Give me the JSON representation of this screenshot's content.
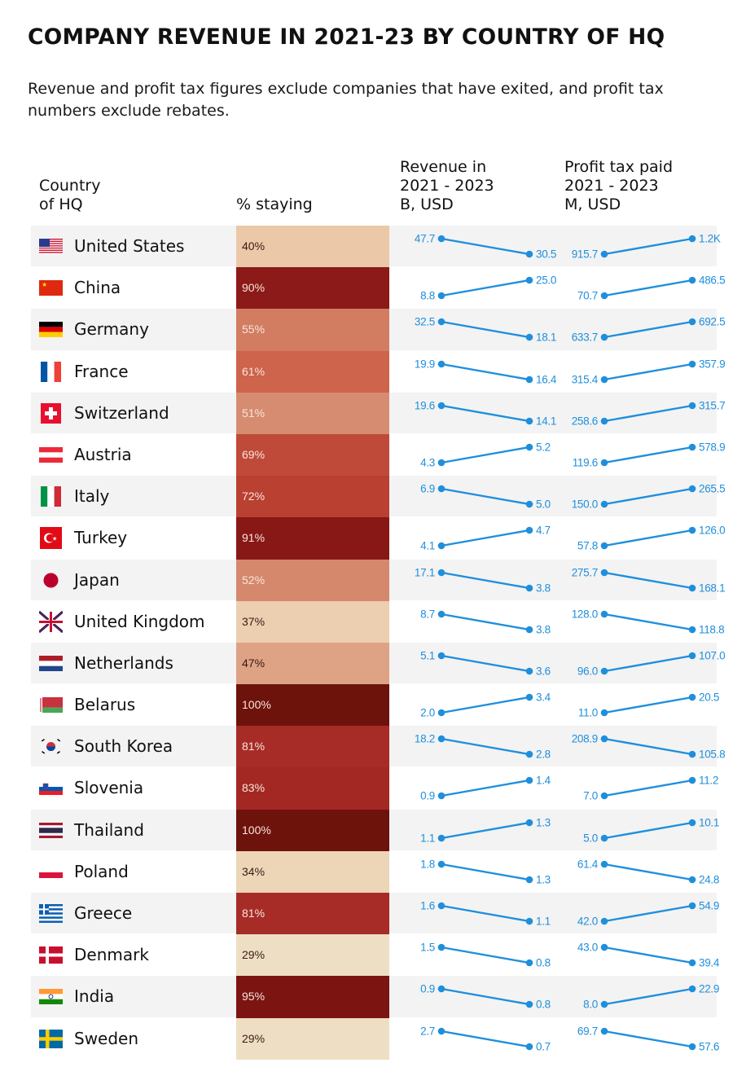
{
  "title": "COMPANY REVENUE IN 2021-23 BY COUNTRY OF HQ",
  "subtitle": "Revenue and profit tax figures exclude companies that have exited, and profit tax numbers exclude rebates.",
  "headers": {
    "country": "Country\nof HQ",
    "staying": "% staying",
    "revenue": "Revenue in\n2021 - 2023\nB, USD",
    "tax": "Profit tax paid\n2021 - 2023\nM, USD"
  },
  "colors": {
    "accent": "#1f8fdc",
    "heat_low": "#efe0c6",
    "heat_high": "#6e120c"
  },
  "chart_data": {
    "type": "table",
    "title": "COMPANY REVENUE IN 2021-23 BY COUNTRY OF HQ",
    "columns": [
      "Country of HQ",
      "% staying",
      "Revenue 2021 (B, USD)",
      "Revenue 2023 (B, USD)",
      "Profit tax 2021 (M, USD)",
      "Profit tax 2023 (M, USD)"
    ],
    "rows": [
      {
        "country": "United States",
        "flag": "us-flag-icon",
        "staying": 40,
        "staying_label": "40%",
        "rev2021": 47.7,
        "rev2021_label": "47.7",
        "rev2023": 30.5,
        "rev2023_label": "30.5",
        "tax2021": 915.7,
        "tax2021_label": "915.7",
        "tax2023": 1200,
        "tax2023_label": "1.2K"
      },
      {
        "country": "China",
        "flag": "cn-flag-icon",
        "staying": 90,
        "staying_label": "90%",
        "rev2021": 8.8,
        "rev2021_label": "8.8",
        "rev2023": 25.0,
        "rev2023_label": "25.0",
        "tax2021": 70.7,
        "tax2021_label": "70.7",
        "tax2023": 486.5,
        "tax2023_label": "486.5"
      },
      {
        "country": "Germany",
        "flag": "de-flag-icon",
        "staying": 55,
        "staying_label": "55%",
        "rev2021": 32.5,
        "rev2021_label": "32.5",
        "rev2023": 18.1,
        "rev2023_label": "18.1",
        "tax2021": 633.7,
        "tax2021_label": "633.7",
        "tax2023": 692.5,
        "tax2023_label": "692.5"
      },
      {
        "country": "France",
        "flag": "fr-flag-icon",
        "staying": 61,
        "staying_label": "61%",
        "rev2021": 19.9,
        "rev2021_label": "19.9",
        "rev2023": 16.4,
        "rev2023_label": "16.4",
        "tax2021": 315.4,
        "tax2021_label": "315.4",
        "tax2023": 357.9,
        "tax2023_label": "357.9"
      },
      {
        "country": "Switzerland",
        "flag": "ch-flag-icon",
        "staying": 51,
        "staying_label": "51%",
        "rev2021": 19.6,
        "rev2021_label": "19.6",
        "rev2023": 14.1,
        "rev2023_label": "14.1",
        "tax2021": 258.6,
        "tax2021_label": "258.6",
        "tax2023": 315.7,
        "tax2023_label": "315.7"
      },
      {
        "country": "Austria",
        "flag": "at-flag-icon",
        "staying": 69,
        "staying_label": "69%",
        "rev2021": 4.3,
        "rev2021_label": "4.3",
        "rev2023": 5.2,
        "rev2023_label": "5.2",
        "tax2021": 119.6,
        "tax2021_label": "119.6",
        "tax2023": 578.9,
        "tax2023_label": "578.9"
      },
      {
        "country": "Italy",
        "flag": "it-flag-icon",
        "staying": 72,
        "staying_label": "72%",
        "rev2021": 6.9,
        "rev2021_label": "6.9",
        "rev2023": 5.0,
        "rev2023_label": "5.0",
        "tax2021": 150.0,
        "tax2021_label": "150.0",
        "tax2023": 265.5,
        "tax2023_label": "265.5"
      },
      {
        "country": "Turkey",
        "flag": "tr-flag-icon",
        "staying": 91,
        "staying_label": "91%",
        "rev2021": 4.1,
        "rev2021_label": "4.1",
        "rev2023": 4.7,
        "rev2023_label": "4.7",
        "tax2021": 57.8,
        "tax2021_label": "57.8",
        "tax2023": 126.0,
        "tax2023_label": "126.0"
      },
      {
        "country": "Japan",
        "flag": "jp-flag-icon",
        "staying": 52,
        "staying_label": "52%",
        "rev2021": 17.1,
        "rev2021_label": "17.1",
        "rev2023": 3.8,
        "rev2023_label": "3.8",
        "tax2021": 275.7,
        "tax2021_label": "275.7",
        "tax2023": 168.1,
        "tax2023_label": "168.1"
      },
      {
        "country": "United Kingdom",
        "flag": "gb-flag-icon",
        "staying": 37,
        "staying_label": "37%",
        "rev2021": 8.7,
        "rev2021_label": "8.7",
        "rev2023": 3.8,
        "rev2023_label": "3.8",
        "tax2021": 128.0,
        "tax2021_label": "128.0",
        "tax2023": 118.8,
        "tax2023_label": "118.8"
      },
      {
        "country": "Netherlands",
        "flag": "nl-flag-icon",
        "staying": 47,
        "staying_label": "47%",
        "rev2021": 5.1,
        "rev2021_label": "5.1",
        "rev2023": 3.6,
        "rev2023_label": "3.6",
        "tax2021": 96.0,
        "tax2021_label": "96.0",
        "tax2023": 107.0,
        "tax2023_label": "107.0"
      },
      {
        "country": "Belarus",
        "flag": "by-flag-icon",
        "staying": 100,
        "staying_label": "100%",
        "rev2021": 2.0,
        "rev2021_label": "2.0",
        "rev2023": 3.4,
        "rev2023_label": "3.4",
        "tax2021": 11.0,
        "tax2021_label": "11.0",
        "tax2023": 20.5,
        "tax2023_label": "20.5"
      },
      {
        "country": "South Korea",
        "flag": "kr-flag-icon",
        "staying": 81,
        "staying_label": "81%",
        "rev2021": 18.2,
        "rev2021_label": "18.2",
        "rev2023": 2.8,
        "rev2023_label": "2.8",
        "tax2021": 208.9,
        "tax2021_label": "208.9",
        "tax2023": 105.8,
        "tax2023_label": "105.8"
      },
      {
        "country": "Slovenia",
        "flag": "si-flag-icon",
        "staying": 83,
        "staying_label": "83%",
        "rev2021": 0.9,
        "rev2021_label": "0.9",
        "rev2023": 1.4,
        "rev2023_label": "1.4",
        "tax2021": 7.0,
        "tax2021_label": "7.0",
        "tax2023": 11.2,
        "tax2023_label": "11.2"
      },
      {
        "country": "Thailand",
        "flag": "th-flag-icon",
        "staying": 100,
        "staying_label": "100%",
        "rev2021": 1.1,
        "rev2021_label": "1.1",
        "rev2023": 1.3,
        "rev2023_label": "1.3",
        "tax2021": 5.0,
        "tax2021_label": "5.0",
        "tax2023": 10.1,
        "tax2023_label": "10.1"
      },
      {
        "country": "Poland",
        "flag": "pl-flag-icon",
        "staying": 34,
        "staying_label": "34%",
        "rev2021": 1.8,
        "rev2021_label": "1.8",
        "rev2023": 1.3,
        "rev2023_label": "1.3",
        "tax2021": 61.4,
        "tax2021_label": "61.4",
        "tax2023": 24.8,
        "tax2023_label": "24.8"
      },
      {
        "country": "Greece",
        "flag": "gr-flag-icon",
        "staying": 81,
        "staying_label": "81%",
        "rev2021": 1.6,
        "rev2021_label": "1.6",
        "rev2023": 1.1,
        "rev2023_label": "1.1",
        "tax2021": 42.0,
        "tax2021_label": "42.0",
        "tax2023": 54.9,
        "tax2023_label": "54.9"
      },
      {
        "country": "Denmark",
        "flag": "dk-flag-icon",
        "staying": 29,
        "staying_label": "29%",
        "rev2021": 1.5,
        "rev2021_label": "1.5",
        "rev2023": 0.8,
        "rev2023_label": "0.8",
        "tax2021": 43.0,
        "tax2021_label": "43.0",
        "tax2023": 39.4,
        "tax2023_label": "39.4"
      },
      {
        "country": "India",
        "flag": "in-flag-icon",
        "staying": 95,
        "staying_label": "95%",
        "rev2021": 0.9,
        "rev2021_label": "0.9",
        "rev2023": 0.8,
        "rev2023_label": "0.8",
        "tax2021": 8.0,
        "tax2021_label": "8.0",
        "tax2023": 22.9,
        "tax2023_label": "22.9"
      },
      {
        "country": "Sweden",
        "flag": "se-flag-icon",
        "staying": 29,
        "staying_label": "29%",
        "rev2021": 2.7,
        "rev2021_label": "2.7",
        "rev2023": 0.7,
        "rev2023_label": "0.7",
        "tax2021": 69.7,
        "tax2021_label": "69.7",
        "tax2023": 57.6,
        "tax2023_label": "57.6"
      }
    ]
  }
}
